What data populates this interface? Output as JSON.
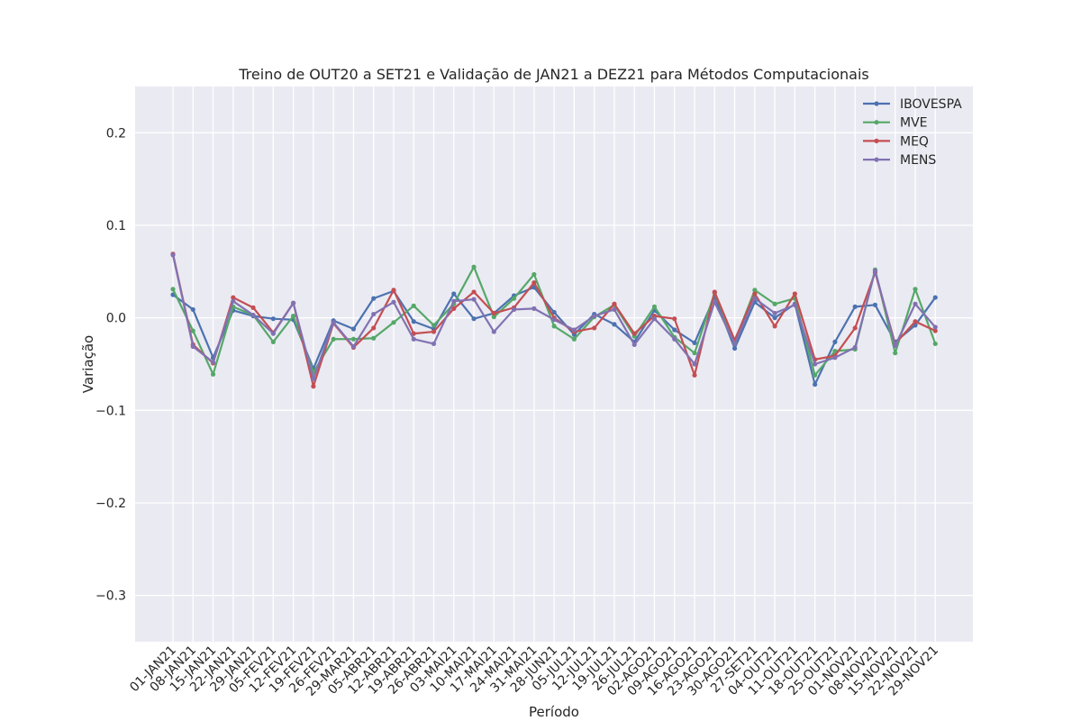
{
  "chart_data": {
    "type": "line",
    "title": "Treino de OUT20 a SET21 e Validação de JAN21 a DEZ21 para Métodos Computacionais",
    "xlabel": "Período",
    "ylabel": "Variação",
    "ylim": [
      -0.35,
      0.25
    ],
    "yticks": [
      0.2,
      0.1,
      0.0,
      -0.1,
      -0.2,
      -0.3
    ],
    "ytick_labels": [
      "0.2",
      "0.1",
      "0.0",
      "−0.1",
      "−0.2",
      "−0.3"
    ],
    "grid": true,
    "legend_position": "top-right",
    "categories": [
      "01-JAN21",
      "08-JAN21",
      "15-JAN21",
      "22-JAN21",
      "29-JAN21",
      "05-FEV21",
      "12-FEV21",
      "19-FEV21",
      "26-FEV21",
      "29-MAR21",
      "05-ABR21",
      "12-ABR21",
      "19-ABR21",
      "26-ABR21",
      "03-MAI21",
      "10-MAI21",
      "17-MAI21",
      "24-MAI21",
      "31-MAI21",
      "28-JUN21",
      "05-JUL21",
      "12-JUL21",
      "19-JUL21",
      "26-JUL21",
      "02-AGO21",
      "09-AGO21",
      "16-AGO21",
      "23-AGO21",
      "30-AGO21",
      "27-SET21",
      "04-OUT21",
      "11-OUT21",
      "18-OUT21",
      "25-OUT21",
      "01-NOV21",
      "08-NOV21",
      "15-NOV21",
      "22-NOV21",
      "29-NOV21"
    ],
    "series": [
      {
        "name": "IBOVESPA",
        "color": "#4c72b0",
        "values": [
          0.025,
          0.009,
          -0.043,
          0.008,
          0.002,
          -0.001,
          -0.002,
          -0.055,
          -0.003,
          -0.012,
          0.021,
          0.029,
          -0.004,
          -0.012,
          0.026,
          -0.001,
          0.005,
          0.024,
          0.033,
          0.006,
          -0.018,
          0.004,
          -0.007,
          -0.026,
          0.008,
          -0.013,
          -0.027,
          0.023,
          -0.033,
          0.017,
          0.0,
          0.015,
          -0.072,
          -0.026,
          0.012,
          0.014,
          -0.026,
          -0.008,
          0.022
        ]
      },
      {
        "name": "MVE",
        "color": "#55a868",
        "values": [
          0.031,
          -0.014,
          -0.061,
          0.012,
          0.003,
          -0.026,
          0.002,
          -0.059,
          -0.023,
          -0.023,
          -0.022,
          -0.005,
          0.013,
          -0.008,
          0.015,
          0.055,
          0.001,
          0.021,
          0.047,
          -0.009,
          -0.023,
          0.001,
          0.014,
          -0.02,
          0.012,
          -0.021,
          -0.038,
          0.027,
          -0.026,
          0.03,
          0.015,
          0.021,
          -0.062,
          -0.036,
          -0.034,
          0.052,
          -0.038,
          0.031,
          -0.028
        ]
      },
      {
        "name": "MEQ",
        "color": "#c44e52",
        "values": [
          0.069,
          -0.029,
          -0.049,
          0.022,
          0.011,
          -0.016,
          0.016,
          -0.074,
          -0.006,
          -0.032,
          -0.011,
          0.03,
          -0.017,
          -0.015,
          0.01,
          0.028,
          0.005,
          0.011,
          0.038,
          0.0,
          -0.015,
          -0.011,
          0.015,
          -0.017,
          0.002,
          -0.001,
          -0.062,
          0.028,
          -0.024,
          0.026,
          -0.009,
          0.026,
          -0.045,
          -0.041,
          -0.011,
          0.049,
          -0.028,
          -0.004,
          -0.014
        ]
      },
      {
        "name": "MENS",
        "color": "#8172b2",
        "values": [
          0.068,
          -0.031,
          -0.048,
          0.018,
          0.003,
          -0.017,
          0.016,
          -0.066,
          -0.005,
          -0.031,
          0.004,
          0.017,
          -0.023,
          -0.028,
          0.018,
          0.02,
          -0.015,
          0.009,
          0.01,
          -0.002,
          -0.013,
          0.002,
          0.009,
          -0.029,
          -0.001,
          -0.023,
          -0.05,
          0.017,
          -0.028,
          0.021,
          0.005,
          0.014,
          -0.05,
          -0.043,
          -0.032,
          0.051,
          -0.03,
          0.015,
          -0.01
        ]
      }
    ]
  }
}
